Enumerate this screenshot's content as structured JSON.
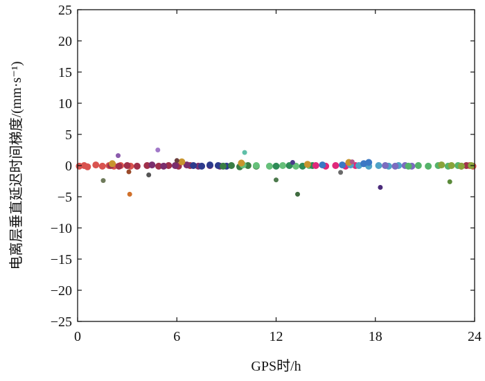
{
  "chart_data": {
    "type": "scatter",
    "title": "",
    "xlabel": "GPS时/h",
    "ylabel": "电离层垂直延迟时间梯度/(mm·s⁻¹)",
    "xlim": [
      0,
      24
    ],
    "ylim": [
      -25,
      25
    ],
    "xticks": [
      0,
      6,
      12,
      18,
      24
    ],
    "yticks": [
      25,
      20,
      15,
      10,
      5,
      0,
      -5,
      -10,
      -15,
      -20,
      -25
    ],
    "grid": false,
    "legend": "none",
    "series": [
      {
        "color": "#d9534f",
        "points": [
          [
            0.1,
            -0.1
          ],
          [
            0.4,
            0.0
          ],
          [
            0.6,
            -0.2
          ],
          [
            1.1,
            0.1
          ],
          [
            1.5,
            -0.1
          ],
          [
            1.9,
            0.0
          ],
          [
            2.2,
            -0.1
          ],
          [
            2.6,
            0.0
          ],
          [
            3.2,
            -0.1
          ],
          [
            23.7,
            0.0
          ],
          [
            23.9,
            -0.1
          ]
        ]
      },
      {
        "color": "#a0304a",
        "points": [
          [
            2.0,
            0.0
          ],
          [
            2.5,
            -0.1
          ],
          [
            3.0,
            0.0
          ],
          [
            3.6,
            -0.1
          ],
          [
            4.2,
            0.0
          ],
          [
            4.9,
            -0.1
          ],
          [
            5.5,
            0.0
          ],
          [
            6.1,
            -0.1
          ],
          [
            6.8,
            0.0
          ],
          [
            23.2,
            -0.1
          ],
          [
            23.5,
            0.0
          ]
        ]
      },
      {
        "color": "#7a2e6e",
        "points": [
          [
            4.5,
            0.1
          ],
          [
            5.2,
            -0.1
          ],
          [
            5.9,
            0.0
          ],
          [
            6.6,
            0.1
          ],
          [
            7.3,
            -0.1
          ],
          [
            8.0,
            0.0
          ],
          [
            8.6,
            -0.1
          ]
        ]
      },
      {
        "color": "#2d3a8c",
        "points": [
          [
            7.0,
            0.0
          ],
          [
            7.5,
            -0.1
          ],
          [
            8.0,
            0.1
          ],
          [
            8.5,
            0.0
          ],
          [
            9.0,
            -0.1
          ]
        ]
      },
      {
        "color": "#3a7d44",
        "points": [
          [
            8.8,
            -0.1
          ],
          [
            9.3,
            0.0
          ],
          [
            9.8,
            -0.2
          ],
          [
            10.3,
            0.0
          ],
          [
            10.8,
            -0.1
          ]
        ]
      },
      {
        "color": "#66c07a",
        "points": [
          [
            10.0,
            0.1
          ],
          [
            10.8,
            0.0
          ],
          [
            11.6,
            -0.1
          ],
          [
            12.4,
            0.0
          ],
          [
            13.2,
            -0.1
          ],
          [
            14.0,
            0.0
          ]
        ]
      },
      {
        "color": "#2e8b57",
        "points": [
          [
            12.0,
            -0.1
          ],
          [
            12.8,
            0.0
          ],
          [
            13.6,
            -0.1
          ],
          [
            14.2,
            0.0
          ]
        ]
      },
      {
        "color": "#e0287a",
        "points": [
          [
            14.4,
            0.0
          ],
          [
            15.0,
            -0.1
          ],
          [
            15.6,
            0.0
          ],
          [
            16.2,
            -0.1
          ],
          [
            16.8,
            0.0
          ]
        ]
      },
      {
        "color": "#4fa3c7",
        "points": [
          [
            16.5,
            0.1
          ],
          [
            17.0,
            0.0
          ],
          [
            17.6,
            -0.1
          ],
          [
            18.2,
            0.0
          ],
          [
            18.8,
            -0.1
          ],
          [
            19.4,
            0.0
          ]
        ]
      },
      {
        "color": "#7b6bbf",
        "points": [
          [
            18.6,
            0.0
          ],
          [
            19.2,
            -0.1
          ],
          [
            19.8,
            0.0
          ],
          [
            20.2,
            -0.1
          ]
        ]
      },
      {
        "color": "#55b36a",
        "points": [
          [
            20.0,
            -0.1
          ],
          [
            20.6,
            0.0
          ],
          [
            21.2,
            -0.1
          ],
          [
            21.8,
            0.0
          ],
          [
            22.4,
            -0.1
          ],
          [
            23.0,
            0.0
          ]
        ]
      },
      {
        "color": "#8aa33a",
        "points": [
          [
            22.0,
            0.1
          ],
          [
            22.6,
            0.0
          ],
          [
            23.2,
            -0.1
          ],
          [
            23.8,
            0.0
          ]
        ]
      },
      {
        "color": "#3b78c4",
        "points": [
          [
            14.8,
            0.1
          ],
          [
            16.0,
            0.1
          ],
          [
            17.3,
            0.3
          ],
          [
            17.6,
            0.5
          ]
        ]
      },
      {
        "color": "#c8952e",
        "points": [
          [
            2.1,
            0.3
          ],
          [
            6.3,
            0.6
          ],
          [
            9.9,
            0.4
          ],
          [
            13.9,
            0.2
          ],
          [
            16.4,
            0.5
          ]
        ]
      }
    ],
    "outliers": [
      {
        "x": 2.45,
        "y": 1.6,
        "color": "#8b5cad"
      },
      {
        "x": 4.85,
        "y": 2.5,
        "color": "#a178c8"
      },
      {
        "x": 10.1,
        "y": 2.1,
        "color": "#5fbfa8"
      },
      {
        "x": 6.0,
        "y": 0.8,
        "color": "#6b3f3f"
      },
      {
        "x": 13.0,
        "y": 0.5,
        "color": "#4a3a8a"
      },
      {
        "x": 16.6,
        "y": 0.6,
        "color": "#b05a8a"
      },
      {
        "x": 1.55,
        "y": -2.4,
        "color": "#6e7a5a"
      },
      {
        "x": 3.15,
        "y": -4.6,
        "color": "#d0702a"
      },
      {
        "x": 3.1,
        "y": -1.0,
        "color": "#9a4a2a"
      },
      {
        "x": 4.3,
        "y": -1.5,
        "color": "#555555"
      },
      {
        "x": 12.0,
        "y": -2.3,
        "color": "#4d7a4d"
      },
      {
        "x": 13.3,
        "y": -4.6,
        "color": "#3f6b3f"
      },
      {
        "x": 15.9,
        "y": -1.1,
        "color": "#6a6a6a"
      },
      {
        "x": 18.3,
        "y": -3.5,
        "color": "#4a2a7a"
      },
      {
        "x": 22.5,
        "y": -2.6,
        "color": "#5a8a3a"
      }
    ]
  }
}
